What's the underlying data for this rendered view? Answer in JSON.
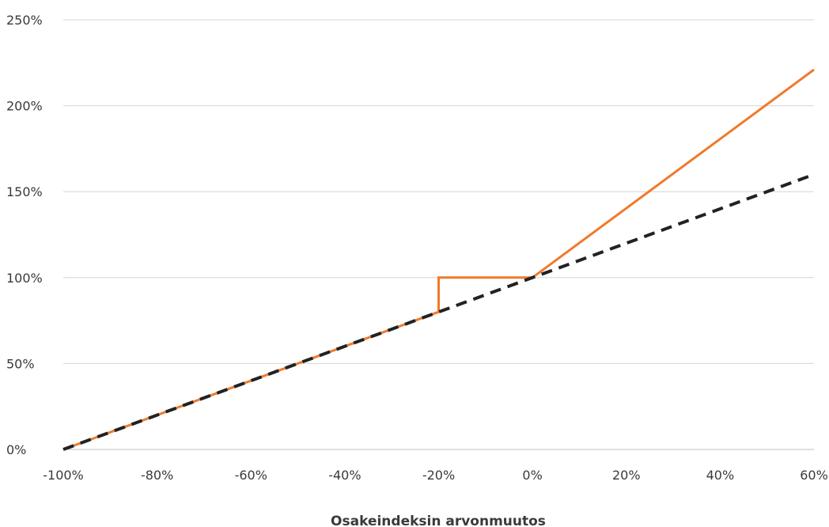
{
  "chart_data": {
    "type": "line",
    "title": "",
    "xlabel": "Osakeindeksin arvonmuutos",
    "ylabel": "",
    "xlim": [
      -100,
      60
    ],
    "ylim": [
      0,
      250
    ],
    "x_ticks": [
      -100,
      -80,
      -60,
      -40,
      -20,
      0,
      20,
      40,
      60
    ],
    "y_ticks": [
      0,
      50,
      100,
      150,
      200,
      250
    ],
    "x_tick_labels": [
      "-100%",
      "-80%",
      "-60%",
      "-40%",
      "-20%",
      "0%",
      "20%",
      "40%",
      "60%"
    ],
    "y_tick_labels": [
      "0%",
      "50%",
      "100%",
      "150%",
      "200%",
      "250%"
    ],
    "grid": "horizontal",
    "legend": "none",
    "series": [
      {
        "style": "solid",
        "color": "#f07a2b",
        "x": [
          -100,
          -20,
          -20,
          0,
          60
        ],
        "y": [
          0,
          80,
          100,
          100,
          221
        ]
      },
      {
        "style": "dashed",
        "color": "#222222",
        "x": [
          -100,
          60
        ],
        "y": [
          0,
          160
        ]
      }
    ]
  }
}
